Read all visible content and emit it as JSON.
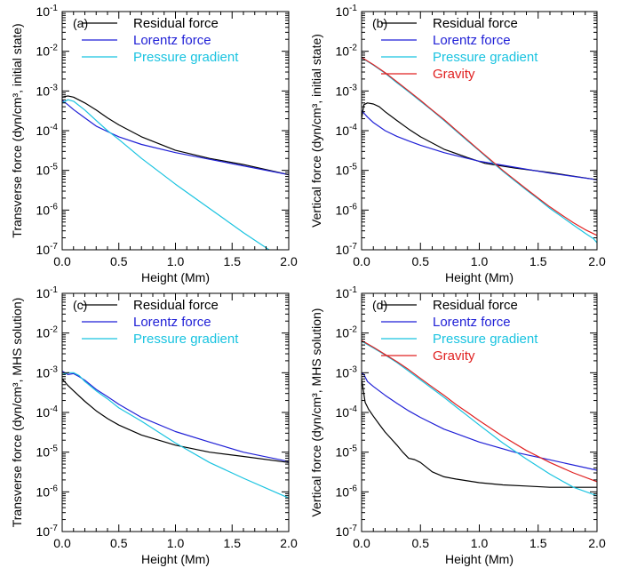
{
  "colors": {
    "residual": "#000000",
    "lorentz": "#1f1fd6",
    "pressure": "#19c3e0",
    "gravity": "#e02020"
  },
  "chart_data": [
    {
      "type": "line",
      "panel_label": "(a)",
      "xlabel": "Height (Mm)",
      "ylabel": "Transverse force (dyn/cm³, initial state)",
      "xlim": [
        0.0,
        2.0
      ],
      "ylim": [
        1e-07,
        0.1
      ],
      "yscale": "log",
      "x_ticks": [
        "0.0",
        "0.5",
        "1.0",
        "1.5",
        "2.0"
      ],
      "y_ticks": [
        {
          "base": "10",
          "exp": "-7"
        },
        {
          "base": "10",
          "exp": "-6"
        },
        {
          "base": "10",
          "exp": "-5"
        },
        {
          "base": "10",
          "exp": "-4"
        },
        {
          "base": "10",
          "exp": "-3"
        },
        {
          "base": "10",
          "exp": "-2"
        },
        {
          "base": "10",
          "exp": "-1"
        }
      ],
      "legend_position": "top-right",
      "series": [
        {
          "name": "Residual force",
          "color_key": "residual",
          "x": [
            0.0,
            0.05,
            0.1,
            0.2,
            0.3,
            0.4,
            0.5,
            0.7,
            1.0,
            1.3,
            1.6,
            2.0
          ],
          "y": [
            0.0007,
            0.00075,
            0.0007,
            0.0005,
            0.00033,
            0.00021,
            0.00014,
            7e-05,
            3.2e-05,
            2e-05,
            1.4e-05,
            7.8e-06
          ]
        },
        {
          "name": "Lorentz force",
          "color_key": "lorentz",
          "x": [
            0.0,
            0.05,
            0.1,
            0.2,
            0.3,
            0.4,
            0.5,
            0.7,
            1.0,
            1.3,
            1.6,
            2.0
          ],
          "y": [
            0.00058,
            0.00045,
            0.00034,
            0.00021,
            0.00013,
            9.5e-05,
            7e-05,
            4.5e-05,
            2.8e-05,
            1.9e-05,
            1.3e-05,
            7.8e-06
          ]
        },
        {
          "name": "Pressure gradient",
          "color_key": "pressure",
          "x": [
            0.0,
            0.05,
            0.1,
            0.2,
            0.3,
            0.4,
            0.5,
            0.7,
            1.0,
            1.3,
            1.6,
            1.85
          ],
          "y": [
            0.0005,
            0.0006,
            0.00055,
            0.00033,
            0.00018,
            0.0001,
            6e-05,
            2e-05,
            4.5e-06,
            1.1e-06,
            2.7e-07,
            9e-08
          ]
        }
      ]
    },
    {
      "type": "line",
      "panel_label": "(b)",
      "xlabel": "Height (Mm)",
      "ylabel": "Vertical force (dyn/cm³, initial state)",
      "xlim": [
        0.0,
        2.0
      ],
      "ylim": [
        1e-07,
        0.1
      ],
      "yscale": "log",
      "x_ticks": [
        "0.0",
        "0.5",
        "1.0",
        "1.5",
        "2.0"
      ],
      "y_ticks": [
        {
          "base": "10",
          "exp": "-7"
        },
        {
          "base": "10",
          "exp": "-6"
        },
        {
          "base": "10",
          "exp": "-5"
        },
        {
          "base": "10",
          "exp": "-4"
        },
        {
          "base": "10",
          "exp": "-3"
        },
        {
          "base": "10",
          "exp": "-2"
        },
        {
          "base": "10",
          "exp": "-1"
        }
      ],
      "legend_position": "top-right",
      "series": [
        {
          "name": "Residual force",
          "color_key": "residual",
          "x": [
            0.0,
            0.02,
            0.05,
            0.1,
            0.15,
            0.2,
            0.3,
            0.4,
            0.5,
            0.7,
            0.9,
            1.05,
            1.3,
            1.6,
            2.0
          ],
          "y": [
            0.0002,
            0.00045,
            0.0005,
            0.00047,
            0.0004,
            0.0003,
            0.00018,
            0.00011,
            7e-05,
            3.4e-05,
            2.1e-05,
            1.5e-05,
            1.15e-05,
            8.8e-06,
            5.8e-06
          ]
        },
        {
          "name": "Lorentz force",
          "color_key": "lorentz",
          "x": [
            0.0,
            0.05,
            0.1,
            0.2,
            0.3,
            0.4,
            0.5,
            0.7,
            1.0,
            1.3,
            1.6,
            2.0
          ],
          "y": [
            0.00032,
            0.00022,
            0.00016,
            0.0001,
            7.2e-05,
            5.5e-05,
            4.3e-05,
            2.8e-05,
            1.7e-05,
            1.2e-05,
            8.5e-06,
            5.8e-06
          ]
        },
        {
          "name": "Pressure gradient",
          "color_key": "pressure",
          "x": [
            0.0,
            0.1,
            0.2,
            0.3,
            0.4,
            0.5,
            0.6,
            0.7,
            0.8,
            0.9,
            1.0,
            1.1,
            1.2,
            1.3,
            1.4,
            1.5,
            1.6,
            1.7,
            1.8,
            1.9,
            1.97,
            2.0
          ],
          "y": [
            0.0068,
            0.0045,
            0.0028,
            0.0016,
            0.00095,
            0.00055,
            0.00032,
            0.00018,
            0.0001,
            5.5e-05,
            3.1e-05,
            1.7e-05,
            9.5e-06,
            5.5e-06,
            3.2e-06,
            1.9e-06,
            1.1e-06,
            6.8e-07,
            4.2e-07,
            2.6e-07,
            1.9e-07,
            1.5e-07
          ]
        },
        {
          "name": "Gravity",
          "color_key": "gravity",
          "x": [
            0.0,
            0.1,
            0.2,
            0.3,
            0.4,
            0.5,
            0.6,
            0.7,
            0.8,
            0.9,
            1.0,
            1.1,
            1.2,
            1.3,
            1.4,
            1.5,
            1.6,
            1.7,
            1.8,
            1.9,
            2.0
          ],
          "y": [
            0.007,
            0.0046,
            0.0029,
            0.0017,
            0.001,
            0.00058,
            0.00033,
            0.00019,
            0.000105,
            5.8e-05,
            3.2e-05,
            1.8e-05,
            1e-05,
            5.8e-06,
            3.4e-06,
            2e-06,
            1.2e-06,
            7.5e-07,
            4.8e-07,
            3.2e-07,
            2.3e-07
          ]
        }
      ]
    },
    {
      "type": "line",
      "panel_label": "(c)",
      "xlabel": "Height (Mm)",
      "ylabel": "Transverse force (dyn/cm³, MHS solution)",
      "xlim": [
        0.0,
        2.0
      ],
      "ylim": [
        1e-07,
        0.1
      ],
      "yscale": "log",
      "x_ticks": [
        "0.0",
        "0.5",
        "1.0",
        "1.5",
        "2.0"
      ],
      "y_ticks": [
        {
          "base": "10",
          "exp": "-7"
        },
        {
          "base": "10",
          "exp": "-6"
        },
        {
          "base": "10",
          "exp": "-5"
        },
        {
          "base": "10",
          "exp": "-4"
        },
        {
          "base": "10",
          "exp": "-3"
        },
        {
          "base": "10",
          "exp": "-2"
        },
        {
          "base": "10",
          "exp": "-1"
        }
      ],
      "legend_position": "top-right",
      "series": [
        {
          "name": "Residual force",
          "color_key": "residual",
          "x": [
            0.0,
            0.05,
            0.1,
            0.2,
            0.3,
            0.4,
            0.5,
            0.7,
            1.0,
            1.3,
            1.6,
            2.0
          ],
          "y": [
            0.0007,
            0.00048,
            0.00035,
            0.00019,
            0.00011,
            7e-05,
            4.8e-05,
            2.7e-05,
            1.5e-05,
            1e-05,
            7.8e-06,
            5.5e-06
          ]
        },
        {
          "name": "Lorentz force",
          "color_key": "lorentz",
          "x": [
            0.0,
            0.05,
            0.1,
            0.15,
            0.2,
            0.3,
            0.4,
            0.5,
            0.7,
            1.0,
            1.3,
            1.6,
            2.0
          ],
          "y": [
            0.0011,
            0.0009,
            0.00095,
            0.0008,
            0.00065,
            0.00038,
            0.00025,
            0.00016,
            7.5e-05,
            3.3e-05,
            1.8e-05,
            1e-05,
            5.8e-06
          ]
        },
        {
          "name": "Pressure gradient",
          "color_key": "pressure",
          "x": [
            0.0,
            0.05,
            0.1,
            0.15,
            0.2,
            0.3,
            0.4,
            0.5,
            0.7,
            1.0,
            1.3,
            1.6,
            2.0
          ],
          "y": [
            0.0009,
            0.001,
            0.001,
            0.00085,
            0.0006,
            0.00035,
            0.00022,
            0.00013,
            6e-05,
            1.7e-05,
            5.5e-06,
            2.2e-06,
            7e-07
          ]
        }
      ]
    },
    {
      "type": "line",
      "panel_label": "(d)",
      "xlabel": "Height (Mm)",
      "ylabel": "Vertical force (dyn/cm³, MHS solution)",
      "xlim": [
        0.0,
        2.0
      ],
      "ylim": [
        1e-07,
        0.1
      ],
      "yscale": "log",
      "x_ticks": [
        "0.0",
        "0.5",
        "1.0",
        "1.5",
        "2.0"
      ],
      "y_ticks": [
        {
          "base": "10",
          "exp": "-7"
        },
        {
          "base": "10",
          "exp": "-6"
        },
        {
          "base": "10",
          "exp": "-5"
        },
        {
          "base": "10",
          "exp": "-4"
        },
        {
          "base": "10",
          "exp": "-3"
        },
        {
          "base": "10",
          "exp": "-2"
        },
        {
          "base": "10",
          "exp": "-1"
        }
      ],
      "legend_position": "top-right",
      "series": [
        {
          "name": "Residual force",
          "color_key": "residual",
          "x": [
            0.0,
            0.03,
            0.06,
            0.1,
            0.15,
            0.2,
            0.25,
            0.3,
            0.35,
            0.4,
            0.45,
            0.5,
            0.6,
            0.7,
            0.8,
            1.0,
            1.2,
            1.4,
            1.6,
            1.8,
            2.0
          ],
          "y": [
            0.0007,
            0.00018,
            0.00012,
            8e-05,
            5e-05,
            3.2e-05,
            2.2e-05,
            1.5e-05,
            1e-05,
            7e-06,
            6.5e-06,
            5.5e-06,
            3.2e-06,
            2.4e-06,
            2.1e-06,
            1.7e-06,
            1.5e-06,
            1.4e-06,
            1.3e-06,
            1.3e-06,
            1.3e-06
          ]
        },
        {
          "name": "Lorentz force",
          "color_key": "lorentz",
          "x": [
            0.0,
            0.02,
            0.05,
            0.1,
            0.2,
            0.3,
            0.4,
            0.5,
            0.7,
            1.0,
            1.3,
            1.6,
            2.0
          ],
          "y": [
            0.001,
            0.0009,
            0.0006,
            0.00045,
            0.00027,
            0.00017,
            0.00011,
            7.5e-05,
            3.8e-05,
            1.8e-05,
            1e-05,
            6.4e-06,
            3.5e-06
          ]
        },
        {
          "name": "Pressure gradient",
          "color_key": "pressure",
          "x": [
            0.0,
            0.1,
            0.2,
            0.3,
            0.4,
            0.5,
            0.6,
            0.7,
            0.8,
            0.9,
            1.0,
            1.2,
            1.4,
            1.6,
            1.8,
            2.0
          ],
          "y": [
            0.0062,
            0.0042,
            0.0028,
            0.0018,
            0.0011,
            0.00066,
            0.0004,
            0.00024,
            0.00014,
            8.2e-05,
            4.8e-05,
            1.7e-05,
            6.7e-06,
            2.8e-06,
            1.3e-06,
            8e-07
          ]
        },
        {
          "name": "Gravity",
          "color_key": "gravity",
          "x": [
            0.0,
            0.1,
            0.2,
            0.3,
            0.4,
            0.5,
            0.6,
            0.7,
            0.8,
            0.9,
            1.0,
            1.2,
            1.4,
            1.6,
            1.8,
            2.0
          ],
          "y": [
            0.0065,
            0.0044,
            0.0029,
            0.0019,
            0.0012,
            0.00072,
            0.00044,
            0.00027,
            0.00016,
            0.0001,
            6.2e-05,
            2.5e-05,
            1.1e-05,
            5.5e-06,
            3e-06,
            1.8e-06
          ]
        }
      ]
    }
  ]
}
